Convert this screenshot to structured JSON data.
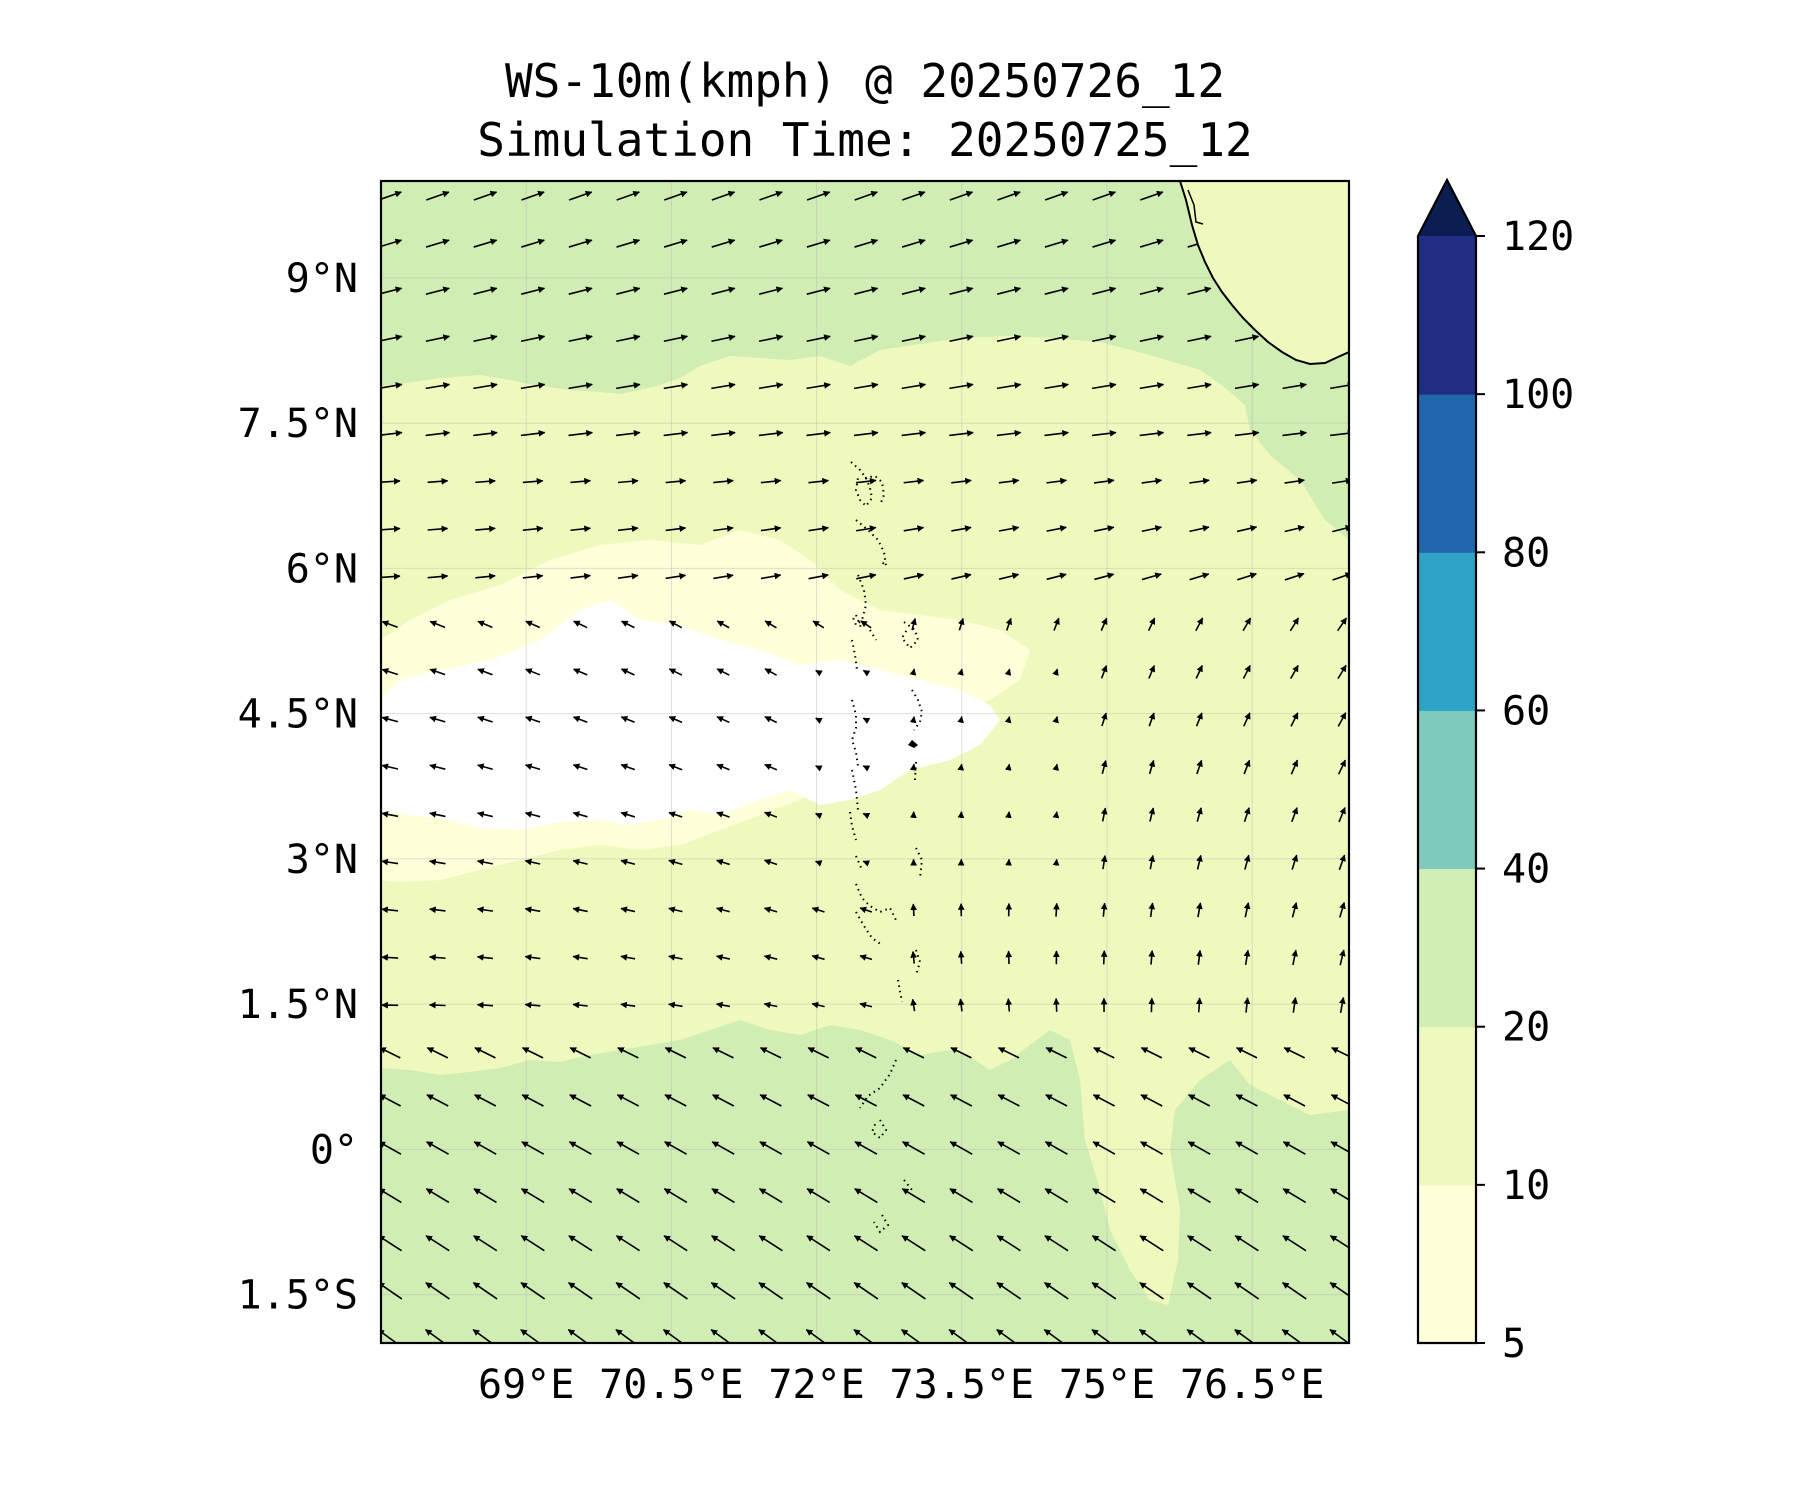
{
  "title": {
    "line1": "WS-10m(kmph) @ 20250726_12",
    "line2": "Simulation Time: 20250725_12"
  },
  "map": {
    "lon_range": [
      67.5,
      77.5
    ],
    "lat_range": [
      -2.0,
      10.0
    ],
    "x_ticks": [
      {
        "value": 69.0,
        "label": "69°E"
      },
      {
        "value": 70.5,
        "label": "70.5°E"
      },
      {
        "value": 72.0,
        "label": "72°E"
      },
      {
        "value": 73.5,
        "label": "73.5°E"
      },
      {
        "value": 75.0,
        "label": "75°E"
      },
      {
        "value": 76.5,
        "label": "76.5°E"
      }
    ],
    "y_ticks": [
      {
        "value": 9.0,
        "label": "9°N"
      },
      {
        "value": 7.5,
        "label": "7.5°N"
      },
      {
        "value": 6.0,
        "label": "6°N"
      },
      {
        "value": 4.5,
        "label": "4.5°N"
      },
      {
        "value": 3.0,
        "label": "3°N"
      },
      {
        "value": 1.5,
        "label": "1.5°N"
      },
      {
        "value": 0.0,
        "label": "0°"
      },
      {
        "value": -1.5,
        "label": "1.5°S"
      }
    ],
    "gridlines": true,
    "vector_field": "10 m wind direction arrows over the domain"
  },
  "colorbar": {
    "extend": "max",
    "levels": [
      {
        "from": 5,
        "to": 10,
        "color": "#ffffd9"
      },
      {
        "from": 10,
        "to": 20,
        "color": "#f0f9bd"
      },
      {
        "from": 20,
        "to": 40,
        "color": "#d0edb3"
      },
      {
        "from": 40,
        "to": 60,
        "color": "#7ccbbc"
      },
      {
        "from": 60,
        "to": 80,
        "color": "#2ea3c5"
      },
      {
        "from": 80,
        "to": 100,
        "color": "#2165aa"
      },
      {
        "from": 100,
        "to": 120,
        "color": "#1f2d82"
      }
    ],
    "over_color": "#0b1d51",
    "tick_labels": [
      "5",
      "10",
      "20",
      "40",
      "60",
      "80",
      "100",
      "120"
    ]
  }
}
